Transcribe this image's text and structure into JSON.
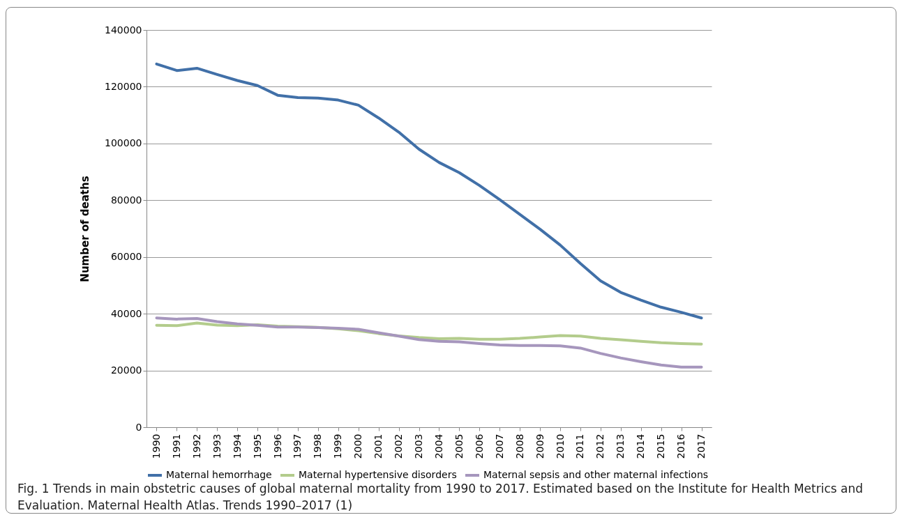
{
  "chart_data": {
    "type": "line",
    "ylabel": "Number of deaths",
    "categories": [
      "1990",
      "1991",
      "1992",
      "1993",
      "1994",
      "1995",
      "1996",
      "1997",
      "1998",
      "1999",
      "2000",
      "2001",
      "2002",
      "2003",
      "2004",
      "2005",
      "2006",
      "2007",
      "2008",
      "2009",
      "2010",
      "2011",
      "2012",
      "2013",
      "2014",
      "2015",
      "2016",
      "2017"
    ],
    "series": [
      {
        "name": "Maternal hemorrhage",
        "color": "#4170a8",
        "values": [
          128000,
          125700,
          126500,
          124300,
          122200,
          120400,
          117000,
          116200,
          116000,
          115300,
          113500,
          109000,
          104000,
          98000,
          93300,
          89700,
          85200,
          80200,
          75000,
          69800,
          64200,
          57700,
          51600,
          47500,
          44800,
          42300,
          40500,
          38500
        ]
      },
      {
        "name": "Maternal hypertensive disorders",
        "color": "#b3cc8c",
        "values": [
          35900,
          35800,
          36700,
          36000,
          35800,
          36100,
          35600,
          35400,
          35200,
          34700,
          34000,
          33000,
          32200,
          31600,
          31200,
          31300,
          31000,
          31000,
          31300,
          31800,
          32300,
          32100,
          31300,
          30800,
          30300,
          29800,
          29500,
          29300
        ]
      },
      {
        "name": "Maternal sepsis and other maternal infections",
        "color": "#a696bd",
        "values": [
          38500,
          38100,
          38300,
          37200,
          36400,
          35900,
          35300,
          35300,
          35100,
          34900,
          34500,
          33300,
          32100,
          30900,
          30300,
          30100,
          29500,
          29000,
          28800,
          28800,
          28700,
          27900,
          26000,
          24400,
          23100,
          21900,
          21200,
          21200
        ]
      }
    ],
    "ylim": [
      0,
      140000
    ],
    "yticks": [
      0,
      20000,
      40000,
      60000,
      80000,
      100000,
      120000,
      140000
    ],
    "grid": "y",
    "legend": "bottom",
    "marker": "none",
    "line_style": "solid",
    "annotations": [
      "Fig. 1  Trends in main obstetric causes of global maternal mortality from 1990 to 2017. Estimated based on the Institute for Health Metrics and Evaluation. Maternal Health Atlas. Trends 1990–2017 (1)"
    ]
  }
}
